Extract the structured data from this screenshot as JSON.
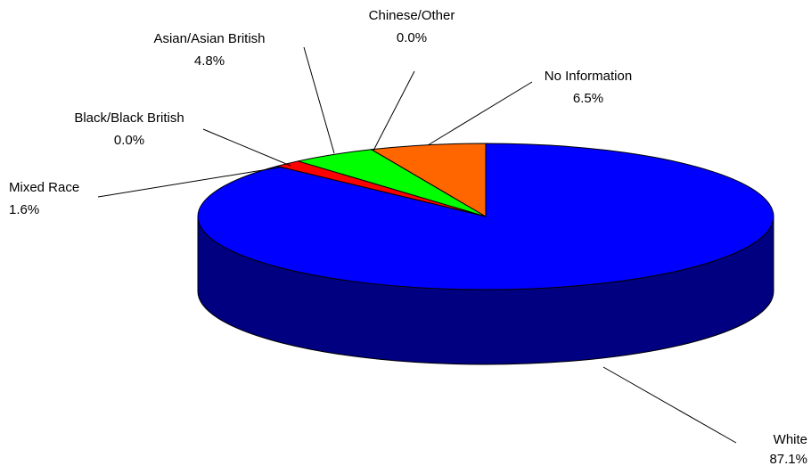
{
  "chart_data": {
    "type": "pie",
    "style": "3d",
    "title": "",
    "slices": [
      {
        "id": "white",
        "name": "White",
        "pct_label": "87.1%",
        "value": 87.1,
        "color": "#0000ff",
        "side_color": "#000080"
      },
      {
        "id": "mixed",
        "name": "Mixed Race",
        "pct_label": "1.6%",
        "value": 1.6,
        "color": "#ff0000",
        "side_color": "#800000"
      },
      {
        "id": "black",
        "name": "Black/Black British",
        "pct_label": "0.0%",
        "value": 0.0,
        "color": "#808080",
        "side_color": "#404040"
      },
      {
        "id": "asian",
        "name": "Asian/Asian British",
        "pct_label": "4.8%",
        "value": 4.8,
        "color": "#00ff00",
        "side_color": "#008000"
      },
      {
        "id": "chinese",
        "name": "Chinese/Other",
        "pct_label": "0.0%",
        "value": 0.0,
        "color": "#ffff00",
        "side_color": "#808000"
      },
      {
        "id": "noinfo",
        "name": "No Information",
        "pct_label": "6.5%",
        "value": 6.5,
        "color": "#ff6600",
        "side_color": "#803300"
      }
    ]
  }
}
